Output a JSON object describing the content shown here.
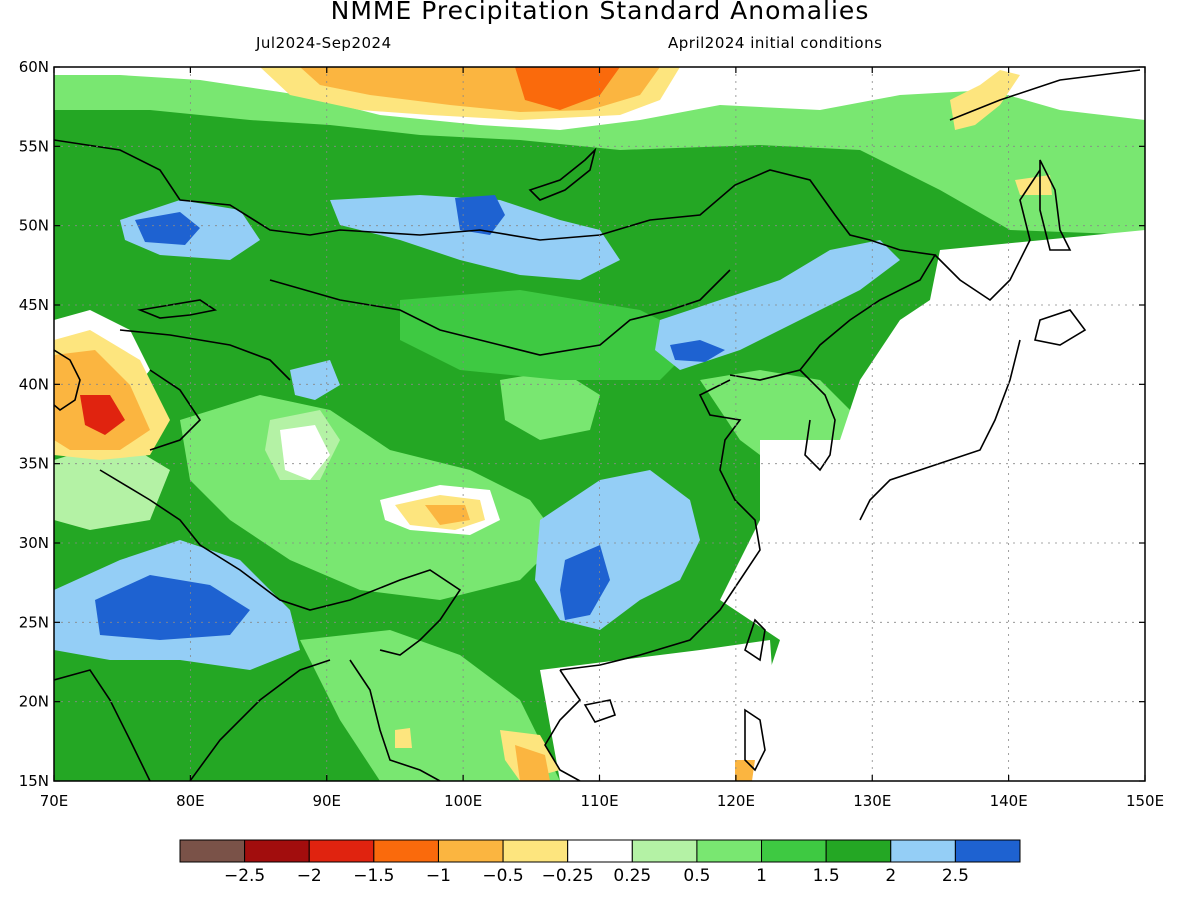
{
  "title": "NMME Precipitation Standard Anomalies",
  "subtitle_left": "Jul2024-Sep2024",
  "subtitle_right": "April2024 initial conditions",
  "map": {
    "lon_range": [
      70,
      150
    ],
    "lat_range": [
      15,
      60
    ],
    "lat_labels": [
      "15N",
      "20N",
      "25N",
      "30N",
      "35N",
      "40N",
      "45N",
      "50N",
      "55N",
      "60N"
    ],
    "lat_values": [
      15,
      20,
      25,
      30,
      35,
      40,
      45,
      50,
      55,
      60
    ],
    "lon_labels": [
      "70E",
      "80E",
      "90E",
      "100E",
      "110E",
      "120E",
      "130E",
      "140E",
      "150E"
    ],
    "lon_values": [
      70,
      80,
      90,
      100,
      110,
      120,
      130,
      140,
      150
    ],
    "gridlines": true
  },
  "colorbar": {
    "colors": [
      "#7a5248",
      "#a20d0d",
      "#e0230f",
      "#fa6a0c",
      "#fbb540",
      "#fde57e",
      "#ffffff",
      "#b4f2a5",
      "#79e771",
      "#3ec942",
      "#24a724",
      "#94cef6",
      "#1e62d1"
    ],
    "labels": [
      "-2.5",
      "-2",
      "-1.5",
      "-1",
      "-0.5",
      "-0.25",
      "0.25",
      "0.5",
      "1",
      "1.5",
      "2",
      "2.5"
    ]
  },
  "anomaly_regions": [
    {
      "name": "siberia-north-dry",
      "value": -1.0
    },
    {
      "name": "siberia-north-core",
      "value": -1.5
    },
    {
      "name": "kazakhstan-west-dry",
      "value": -1.5
    },
    {
      "name": "tibet-dry-spot",
      "value": -0.5
    },
    {
      "name": "lake-baikal-wet",
      "value": 2.5
    },
    {
      "name": "kazakhstan-wet",
      "value": 2.5
    },
    {
      "name": "manchuria-wet",
      "value": 2.0
    },
    {
      "name": "south-china-wet",
      "value": 2.0
    },
    {
      "name": "south-china-core",
      "value": 2.5
    },
    {
      "name": "india-wet",
      "value": 2.0
    },
    {
      "name": "india-core",
      "value": 2.5
    }
  ]
}
